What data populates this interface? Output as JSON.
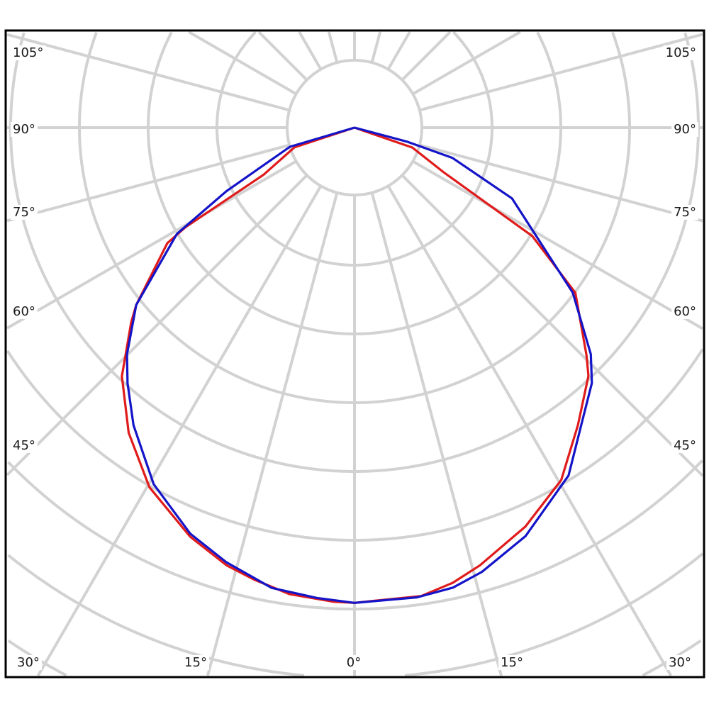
{
  "chart_data": {
    "type": "polar-line",
    "title": "",
    "radial_unit": "grid rings (no radial scale printed)",
    "angle_step_deg": 15,
    "grid": true,
    "tick_labels": {
      "left": [
        "105°",
        "90°",
        "75°",
        "60°",
        "45°",
        "30°"
      ],
      "right": [
        "105°",
        "90°",
        "75°",
        "60°",
        "45°",
        "30°"
      ],
      "bottom": [
        "15°",
        "0°",
        "15°"
      ]
    },
    "series": [
      {
        "color": "#e01b1b",
        "points": [
          {
            "angle": -90,
            "r": 0
          },
          {
            "angle": -71.8,
            "r": 0.92
          },
          {
            "angle": -62.6,
            "r": 1.49
          },
          {
            "angle": -59.5,
            "r": 2.85
          },
          {
            "angle": -58.3,
            "r": 3.2
          },
          {
            "angle": -50.9,
            "r": 4.09
          },
          {
            "angle": -48.9,
            "r": 4.31
          },
          {
            "angle": -43.1,
            "r": 4.95
          },
          {
            "angle": -36.5,
            "r": 5.52
          },
          {
            "angle": -29.7,
            "r": 6.02
          },
          {
            "angle": -21.9,
            "r": 6.41
          },
          {
            "angle": -16.3,
            "r": 6.63
          },
          {
            "angle": -12.6,
            "r": 6.73
          },
          {
            "angle": -7.9,
            "r": 6.85
          },
          {
            "angle": -2.6,
            "r": 6.9
          },
          {
            "angle": 0,
            "r": 6.91
          },
          {
            "angle": 2,
            "r": 6.89
          },
          {
            "angle": 8.1,
            "r": 6.88
          },
          {
            "angle": 12.2,
            "r": 6.77
          },
          {
            "angle": 16,
            "r": 6.62
          },
          {
            "angle": 23.2,
            "r": 6.31
          },
          {
            "angle": 30.4,
            "r": 5.94
          },
          {
            "angle": 36.9,
            "r": 5.41
          },
          {
            "angle": 43.3,
            "r": 4.96
          },
          {
            "angle": 45.6,
            "r": 4.72
          },
          {
            "angle": 53.2,
            "r": 4.01
          },
          {
            "angle": 58.6,
            "r": 3.03
          },
          {
            "angle": 63.4,
            "r": 1.45
          },
          {
            "angle": 71,
            "r": 0.89
          },
          {
            "angle": 90,
            "r": 0
          }
        ]
      },
      {
        "color": "#1414c8",
        "points": [
          {
            "angle": -90,
            "r": 0
          },
          {
            "angle": -73.5,
            "r": 0.98
          },
          {
            "angle": -63.6,
            "r": 2.08
          },
          {
            "angle": -59.1,
            "r": 3.01
          },
          {
            "angle": -50.9,
            "r": 4.09
          },
          {
            "angle": -45.1,
            "r": 4.67
          },
          {
            "angle": -41.6,
            "r": 4.97
          },
          {
            "angle": -36.6,
            "r": 5.39
          },
          {
            "angle": -29.4,
            "r": 5.95
          },
          {
            "angle": -22,
            "r": 6.37
          },
          {
            "angle": -16.4,
            "r": 6.59
          },
          {
            "angle": -10.2,
            "r": 6.8
          },
          {
            "angle": -4.6,
            "r": 6.86
          },
          {
            "angle": 0,
            "r": 6.91
          },
          {
            "angle": 7.6,
            "r": 6.89
          },
          {
            "angle": 12.1,
            "r": 6.84
          },
          {
            "angle": 16,
            "r": 6.72
          },
          {
            "angle": 22.7,
            "r": 6.44
          },
          {
            "angle": 31.6,
            "r": 5.94
          },
          {
            "angle": 38.8,
            "r": 5.33
          },
          {
            "angle": 42.9,
            "r": 5.07
          },
          {
            "angle": 46.2,
            "r": 4.76
          },
          {
            "angle": 52.9,
            "r": 3.98
          },
          {
            "angle": 65.8,
            "r": 2.51
          },
          {
            "angle": 72.8,
            "r": 1.49
          },
          {
            "angle": 75,
            "r": 0.8
          },
          {
            "angle": 90,
            "r": 0
          }
        ]
      }
    ],
    "colors": {
      "grid": "#d2d2d2",
      "frame": "#000000"
    }
  }
}
